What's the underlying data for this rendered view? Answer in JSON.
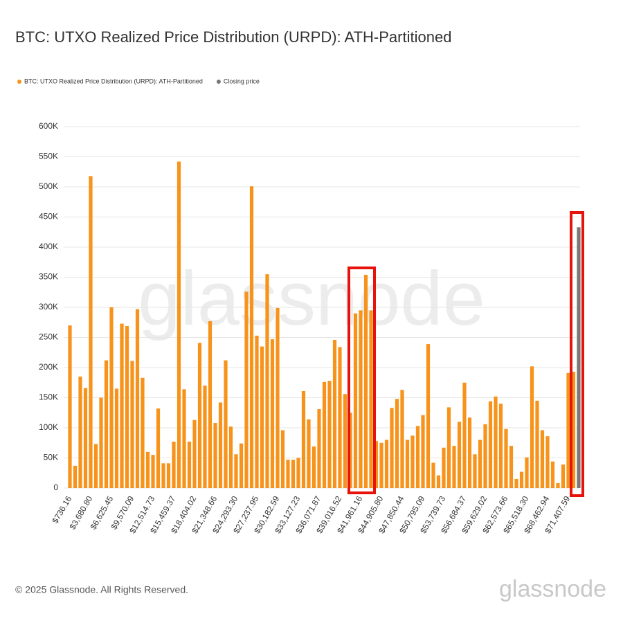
{
  "chart_data": {
    "type": "bar",
    "title": "BTC: UTXO Realized Price Distribution (URPD): ATH-Partitioned",
    "watermark": "glassnode",
    "footer": "© 2025 Glassnode. All Rights Reserved.",
    "logo": "glassnode",
    "categories": [
      "$736.16",
      null,
      null,
      null,
      "$3,680.80",
      null,
      null,
      null,
      "$6,625.45",
      null,
      null,
      null,
      "$9,570.09",
      null,
      null,
      null,
      "$12,514.73",
      null,
      null,
      null,
      "$15,459.37",
      null,
      null,
      null,
      "$18,404.02",
      null,
      null,
      null,
      "$21,348.66",
      null,
      null,
      null,
      "$24,293.30",
      null,
      null,
      null,
      "$27,237.95",
      null,
      null,
      null,
      "$30,182.59",
      null,
      null,
      null,
      "$33,127.23",
      null,
      null,
      null,
      "$36,071.87",
      null,
      null,
      null,
      "$39,016.52",
      null,
      null,
      null,
      "$41,961.16",
      null,
      null,
      null,
      "$44,905.80",
      null,
      null,
      null,
      "$47,850.44",
      null,
      null,
      null,
      "$50,795.09",
      null,
      null,
      null,
      "$53,739.73",
      null,
      null,
      null,
      "$56,684.37",
      null,
      null,
      null,
      "$59,629.02",
      null,
      null,
      null,
      "$62,573.66",
      null,
      null,
      null,
      "$65,518.30",
      null,
      null,
      null,
      "$68,462.94",
      null,
      null,
      null,
      "$71,407.59",
      null,
      null
    ],
    "series": [
      {
        "name": "BTC: UTXO Realized Price Distribution (URPD): ATH-Partitioned",
        "color": "#f7931a",
        "values": [
          270000,
          37000,
          185000,
          166000,
          518000,
          73000,
          150000,
          212000,
          300000,
          165000,
          273000,
          269000,
          211000,
          297000,
          183000,
          60000,
          55000,
          132000,
          41000,
          41000,
          77000,
          542000,
          164000,
          77000,
          113000,
          241000,
          170000,
          277000,
          108000,
          142000,
          212000,
          102000,
          56000,
          74000,
          326000,
          501000,
          253000,
          235000,
          355000,
          247000,
          299000,
          96000,
          47000,
          47000,
          50000,
          161000,
          114000,
          69000,
          131000,
          176000,
          178000,
          246000,
          234000,
          156000,
          125000,
          290000,
          295000,
          354000,
          295000,
          78000,
          75000,
          80000,
          133000,
          148000,
          163000,
          80000,
          87000,
          103000,
          121000,
          239000,
          42000,
          21000,
          67000,
          134000,
          70000,
          110000,
          175000,
          117000,
          56000,
          80000,
          106000,
          144000,
          152000,
          140000,
          98000,
          70000,
          15000,
          27000,
          51000,
          202000,
          145000,
          96000,
          86000,
          44000,
          8000,
          39000,
          191000,
          193000,
          null
        ]
      },
      {
        "name": "Closing price",
        "color": "#777777",
        "values": [
          null,
          null,
          null,
          null,
          null,
          null,
          null,
          null,
          null,
          null,
          null,
          null,
          null,
          null,
          null,
          null,
          null,
          null,
          null,
          null,
          null,
          null,
          null,
          null,
          null,
          null,
          null,
          null,
          null,
          null,
          null,
          null,
          null,
          null,
          null,
          null,
          null,
          null,
          null,
          null,
          null,
          null,
          null,
          null,
          null,
          null,
          null,
          null,
          null,
          null,
          null,
          null,
          null,
          null,
          null,
          null,
          null,
          null,
          null,
          null,
          null,
          null,
          null,
          null,
          null,
          null,
          null,
          null,
          null,
          null,
          null,
          null,
          null,
          null,
          null,
          null,
          null,
          null,
          null,
          null,
          null,
          null,
          null,
          null,
          null,
          null,
          null,
          null,
          null,
          null,
          null,
          null,
          null,
          null,
          null,
          null,
          null,
          null,
          433000
        ]
      }
    ],
    "ylim": [
      0,
      600000
    ],
    "yticks": [
      0,
      {
        "value": 50000,
        "label": "50K"
      },
      {
        "value": 100000,
        "label": "100K"
      },
      {
        "value": 150000,
        "label": "150K"
      },
      {
        "value": 200000,
        "label": "200K"
      },
      {
        "value": 250000,
        "label": "250K"
      },
      {
        "value": 300000,
        "label": "300K"
      },
      {
        "value": 350000,
        "label": "350K"
      },
      {
        "value": 400000,
        "label": "400K"
      },
      {
        "value": 450000,
        "label": "450K"
      },
      {
        "value": 500000,
        "label": "500K"
      },
      {
        "value": 550000,
        "label": "550K"
      },
      {
        "value": 600000,
        "label": "600K"
      }
    ],
    "grid": true
  }
}
